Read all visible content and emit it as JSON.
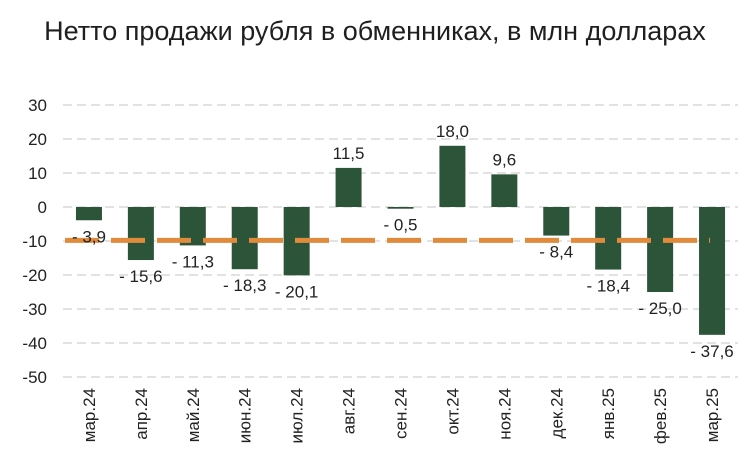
{
  "chart_data": {
    "type": "bar",
    "title": "Нетто продажи рубля в обменниках, в млн долларах",
    "categories": [
      "мар.24",
      "апр.24",
      "май.24",
      "июн.24",
      "июл.24",
      "авг.24",
      "сен.24",
      "окт.24",
      "ноя.24",
      "дек.24",
      "янв.25",
      "фев.25",
      "мар.25"
    ],
    "values": [
      -3.9,
      -15.6,
      -11.3,
      -18.3,
      -20.1,
      11.5,
      -0.5,
      18.0,
      9.6,
      -8.4,
      -18.4,
      -25.0,
      -37.6
    ],
    "data_labels": [
      "- 3,9",
      "- 15,6",
      "- 11,3",
      "- 18,3",
      "- 20,1",
      "11,5",
      "- 0,5",
      "18,0",
      "9,6",
      "- 8,4",
      "- 18,4",
      "- 25,0",
      "- 37,6"
    ],
    "ylim": [
      -50,
      30
    ],
    "yticks": [
      30,
      20,
      10,
      0,
      -10,
      -20,
      -30,
      -40,
      -50
    ],
    "reference_line": {
      "value": -9.8,
      "style": "dashed"
    },
    "grid": true,
    "legend": "none",
    "colors": {
      "bar": "#2c5438",
      "reference_line": "#e08a3c",
      "grid": "#d9d9d9"
    }
  }
}
